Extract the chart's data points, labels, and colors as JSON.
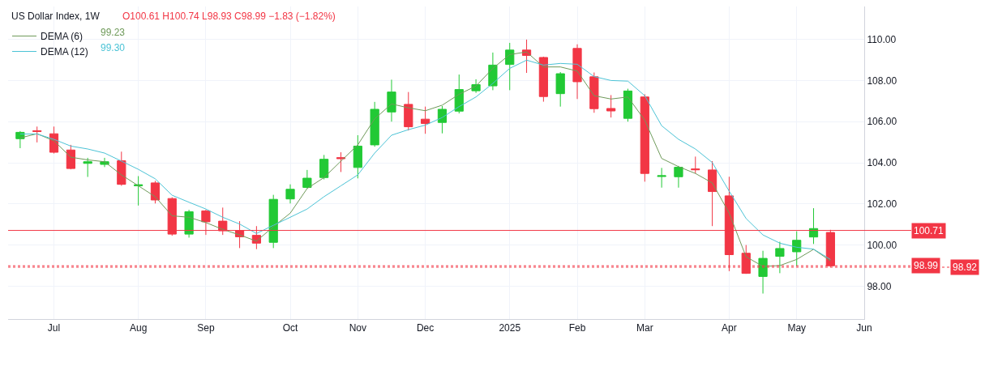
{
  "chart_data": {
    "type": "candlestick",
    "title": "US Dollar Index, 1W",
    "annotations": [
      "O100.61 H100.74 L98.93 C98.99 −1.83 (−1.82%)",
      "99.23",
      "99.30"
    ],
    "x": [
      "2024-06-17",
      "2024-06-24",
      "2024-07-01",
      "2024-07-08",
      "2024-07-15",
      "2024-07-22",
      "2024-07-29",
      "2024-08-05",
      "2024-08-12",
      "2024-08-19",
      "2024-08-26",
      "2024-09-02",
      "2024-09-09",
      "2024-09-16",
      "2024-09-23",
      "2024-09-30",
      "2024-10-07",
      "2024-10-14",
      "2024-10-21",
      "2024-10-28",
      "2024-11-04",
      "2024-11-11",
      "2024-11-18",
      "2024-11-25",
      "2024-12-02",
      "2024-12-09",
      "2024-12-16",
      "2024-12-23",
      "2024-12-30",
      "2025-01-06",
      "2025-01-13",
      "2025-01-20",
      "2025-01-27",
      "2025-02-03",
      "2025-02-10",
      "2025-02-17",
      "2025-02-24",
      "2025-03-03",
      "2025-03-10",
      "2025-03-17",
      "2025-03-24",
      "2025-03-31",
      "2025-04-07",
      "2025-04-14",
      "2025-04-21",
      "2025-04-28",
      "2025-05-05",
      "2025-05-12",
      "2025-05-19"
    ],
    "ohlc": [
      [
        105.17,
        105.54,
        104.71,
        105.48
      ],
      [
        105.56,
        105.76,
        104.99,
        105.52
      ],
      [
        105.41,
        105.76,
        104.45,
        104.51
      ],
      [
        104.62,
        104.87,
        103.68,
        103.72
      ],
      [
        103.97,
        104.24,
        103.31,
        104.05
      ],
      [
        103.92,
        104.24,
        103.79,
        104.05
      ],
      [
        104.1,
        104.54,
        102.88,
        102.95
      ],
      [
        102.88,
        103.35,
        101.92,
        102.93
      ],
      [
        103.02,
        103.12,
        102.02,
        102.19
      ],
      [
        102.26,
        102.32,
        100.45,
        100.53
      ],
      [
        100.53,
        101.71,
        100.36,
        101.62
      ],
      [
        101.66,
        101.71,
        100.49,
        101.13
      ],
      [
        101.16,
        101.82,
        100.49,
        100.69
      ],
      [
        100.69,
        101.16,
        99.85,
        100.4
      ],
      [
        100.47,
        100.92,
        99.8,
        100.09
      ],
      [
        100.13,
        102.44,
        99.85,
        102.22
      ],
      [
        102.24,
        102.95,
        102.02,
        102.71
      ],
      [
        102.8,
        103.65,
        102.75,
        103.25
      ],
      [
        103.28,
        104.38,
        103.19,
        104.17
      ],
      [
        104.25,
        104.51,
        103.55,
        104.2
      ],
      [
        103.77,
        105.34,
        103.24,
        104.81
      ],
      [
        104.87,
        106.96,
        104.78,
        106.6
      ],
      [
        106.47,
        108.04,
        106.0,
        107.44
      ],
      [
        106.84,
        107.44,
        105.57,
        105.75
      ],
      [
        106.12,
        106.73,
        105.41,
        105.91
      ],
      [
        105.96,
        106.76,
        105.43,
        106.6
      ],
      [
        106.51,
        108.29,
        106.4,
        107.56
      ],
      [
        107.5,
        108.06,
        107.4,
        107.8
      ],
      [
        107.74,
        109.36,
        107.53,
        108.75
      ],
      [
        108.78,
        109.83,
        107.53,
        109.48
      ],
      [
        109.48,
        109.99,
        108.37,
        109.22
      ],
      [
        109.12,
        109.16,
        106.97,
        107.22
      ],
      [
        107.36,
        108.41,
        106.73,
        108.33
      ],
      [
        109.56,
        109.76,
        107.1,
        107.94
      ],
      [
        108.18,
        108.39,
        106.43,
        106.63
      ],
      [
        106.64,
        107.29,
        106.2,
        106.52
      ],
      [
        106.16,
        107.6,
        106.0,
        107.49
      ],
      [
        107.2,
        107.33,
        103.08,
        103.48
      ],
      [
        103.33,
        103.75,
        102.79,
        103.37
      ],
      [
        103.32,
        103.85,
        102.79,
        103.78
      ],
      [
        103.7,
        104.3,
        103.48,
        103.66
      ],
      [
        103.65,
        104.08,
        100.92,
        102.6
      ],
      [
        102.39,
        103.32,
        98.73,
        99.53
      ],
      [
        99.6,
        100.0,
        98.6,
        98.62
      ],
      [
        98.47,
        99.72,
        97.64,
        99.35
      ],
      [
        99.45,
        100.16,
        98.63,
        99.83
      ],
      [
        99.67,
        100.67,
        98.96,
        100.23
      ],
      [
        100.39,
        101.79,
        100.05,
        100.8
      ],
      [
        100.61,
        100.74,
        98.93,
        98.99
      ]
    ],
    "colors": [
      "#22c935",
      "#f23645",
      "#f23645",
      "#f23645",
      "#22c935",
      "#22c935",
      "#f23645",
      "#22c935",
      "#f23645",
      "#f23645",
      "#22c935",
      "#f23645",
      "#f23645",
      "#f23645",
      "#f23645",
      "#22c935",
      "#22c935",
      "#22c935",
      "#22c935",
      "#f23645",
      "#22c935",
      "#22c935",
      "#22c935",
      "#f23645",
      "#f23645",
      "#22c935",
      "#22c935",
      "#22c935",
      "#22c935",
      "#22c935",
      "#f23645",
      "#f23645",
      "#22c935",
      "#f23645",
      "#f23645",
      "#f23645",
      "#22c935",
      "#f23645",
      "#22c935",
      "#22c935",
      "#f23645",
      "#f23645",
      "#f23645",
      "#f23645",
      "#22c935",
      "#22c935",
      "#22c935",
      "#22c935",
      "#f23645"
    ],
    "series": [
      {
        "name": "DEMA (6)",
        "type": "line",
        "color": "#6f9a5a",
        "values": [
          105.21,
          105.41,
          105.07,
          104.27,
          104.14,
          104.05,
          103.41,
          102.88,
          102.35,
          101.42,
          101.35,
          101.09,
          100.76,
          100.49,
          100.19,
          100.89,
          101.55,
          102.75,
          103.28,
          104.08,
          104.87,
          106.14,
          106.86,
          106.67,
          106.53,
          106.8,
          107.33,
          107.73,
          108.59,
          109.26,
          109.39,
          108.66,
          108.66,
          108.46,
          107.26,
          107.1,
          107.2,
          106.07,
          104.21,
          103.81,
          103.48,
          103.02,
          101.55,
          99.43,
          98.96,
          99.0,
          99.3,
          99.79,
          99.23
        ]
      },
      {
        "name": "DEMA (12)",
        "type": "line",
        "color": "#4cc3d6",
        "values": [
          105.4,
          105.4,
          105.14,
          104.81,
          104.67,
          104.47,
          104.08,
          103.68,
          103.22,
          102.42,
          102.08,
          101.75,
          101.35,
          101.02,
          100.56,
          100.96,
          101.35,
          101.75,
          102.35,
          102.88,
          103.41,
          104.47,
          105.34,
          105.61,
          105.83,
          106.2,
          106.73,
          107.2,
          107.86,
          108.59,
          108.99,
          108.75,
          108.83,
          108.79,
          108.19,
          108.0,
          107.97,
          107.26,
          105.8,
          105.14,
          104.67,
          104.01,
          102.62,
          101.29,
          100.49,
          100.09,
          99.89,
          99.8,
          99.3
        ]
      }
    ],
    "ref_lines": [
      {
        "axis": "y",
        "value": 100.71,
        "label": "100.71",
        "color": "#f23645",
        "line_style": "solid"
      },
      {
        "axis": "y",
        "value": 98.99,
        "label": "98.99",
        "color": "#f23645",
        "line_style": "dotted"
      },
      {
        "axis": "y",
        "value": 98.92,
        "label": "98.92",
        "color": "#f23645",
        "line_style": "dotted"
      }
    ],
    "xlim": [
      "2024-06-12",
      "2025-06-02"
    ],
    "xticks": [
      {
        "value": "2024-07-01",
        "label": "Jul"
      },
      {
        "value": "2024-08-05",
        "label": "Aug"
      },
      {
        "value": "2024-09-02",
        "label": "Sep"
      },
      {
        "value": "2024-10-07",
        "label": "Oct"
      },
      {
        "value": "2024-11-04",
        "label": "Nov"
      },
      {
        "value": "2024-12-02",
        "label": "Dec"
      },
      {
        "value": "2025-01-06",
        "label": "2025"
      },
      {
        "value": "2025-02-03",
        "label": "Feb"
      },
      {
        "value": "2025-03-03",
        "label": "Mar"
      },
      {
        "value": "2025-04-07",
        "label": "Apr"
      },
      {
        "value": "2025-05-05",
        "label": "May"
      },
      {
        "value": "2025-06-02",
        "label": "Jun"
      }
    ],
    "ylim": [
      96.4,
      111.6
    ],
    "yticks": [
      {
        "value": 98,
        "label": "98.00"
      },
      {
        "value": 100,
        "label": "100.00"
      },
      {
        "value": 102,
        "label": "102.00"
      },
      {
        "value": 104,
        "label": "104.00"
      },
      {
        "value": 106,
        "label": "106.00"
      },
      {
        "value": 108,
        "label": "108.00"
      },
      {
        "value": 110,
        "label": "110.00"
      }
    ],
    "grid": true,
    "legend": "top left",
    "marker": "none",
    "line_style": "solid"
  }
}
